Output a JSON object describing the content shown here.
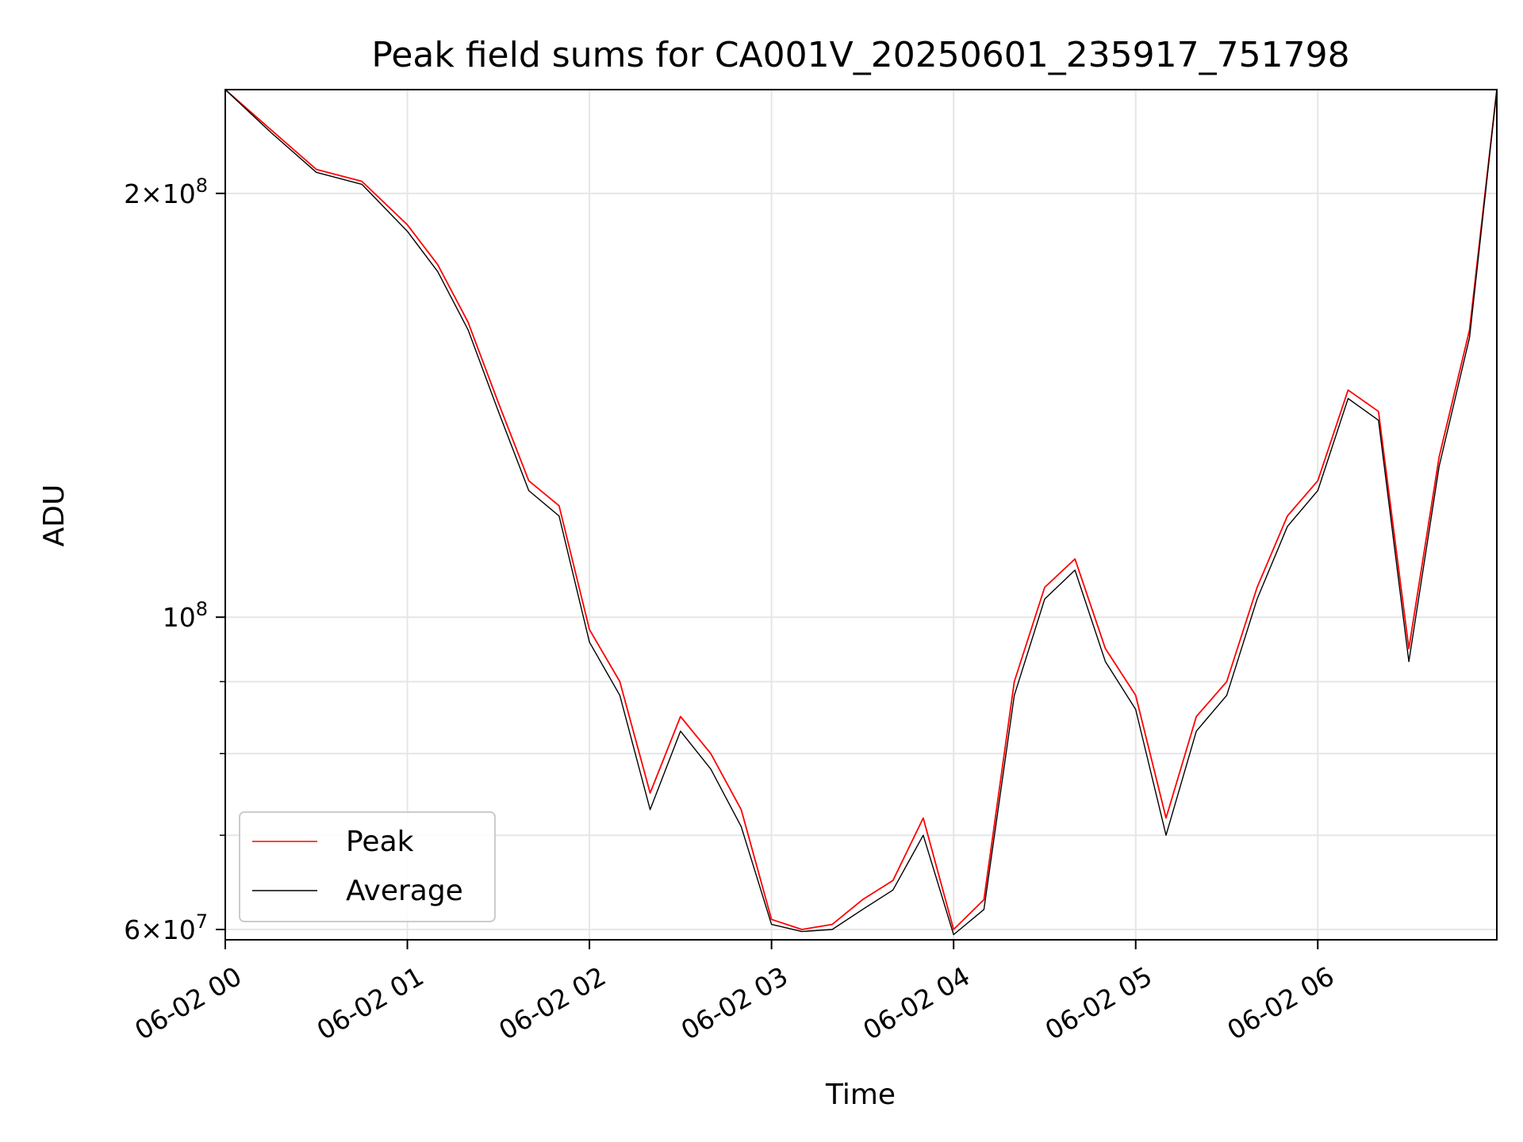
{
  "chart_data": {
    "type": "line",
    "title": "Peak field sums for CA001V_20250601_235917_751798",
    "xlabel": "Time",
    "ylabel": "ADU",
    "yscale": "log",
    "ylim": [
      59000000,
      237000000
    ],
    "xlim": [
      "2025-06-02 00:00",
      "2025-06-02 06:59"
    ],
    "grid": true,
    "legend_position": "lower-left",
    "x_ticks": [
      "06-02 00",
      "06-02 01",
      "06-02 02",
      "06-02 03",
      "06-02 04",
      "06-02 05",
      "06-02 06"
    ],
    "y_ticks": [
      {
        "value": 60000000,
        "mantissa": "6",
        "base": "10",
        "exp": "7"
      },
      {
        "value": 100000000,
        "mantissa": "",
        "base": "10",
        "exp": "8"
      },
      {
        "value": 200000000,
        "mantissa": "2",
        "base": "10",
        "exp": "8"
      }
    ],
    "y_minor_ticks": [
      70000000,
      80000000,
      90000000
    ],
    "series": [
      {
        "name": "Peak",
        "color": "#ff0000",
        "time": [
          "00:00",
          "00:15",
          "00:30",
          "00:45",
          "01:00",
          "01:10",
          "01:20",
          "01:30",
          "01:40",
          "01:50",
          "02:00",
          "02:10",
          "02:20",
          "02:30",
          "02:40",
          "02:50",
          "03:00",
          "03:10",
          "03:20",
          "03:30",
          "03:40",
          "03:50",
          "04:00",
          "04:10",
          "04:20",
          "04:30",
          "04:40",
          "04:50",
          "05:00",
          "05:10",
          "05:20",
          "05:30",
          "05:40",
          "05:50",
          "06:00",
          "06:10",
          "06:20",
          "06:30",
          "06:40",
          "06:50",
          "06:59"
        ],
        "values": [
          237000000,
          222000000,
          208000000,
          204000000,
          190000000,
          178000000,
          162000000,
          142000000,
          125000000,
          120000000,
          98000000,
          90000000,
          75000000,
          85000000,
          80000000,
          73000000,
          61000000,
          60000000,
          60500000,
          63000000,
          65000000,
          72000000,
          60000000,
          63000000,
          90000000,
          105000000,
          110000000,
          95000000,
          88000000,
          72000000,
          85000000,
          90000000,
          105000000,
          118000000,
          125000000,
          145000000,
          140000000,
          95000000,
          130000000,
          160000000,
          237000000
        ]
      },
      {
        "name": "Average",
        "color": "#000000",
        "time": [
          "00:00",
          "00:15",
          "00:30",
          "00:45",
          "01:00",
          "01:10",
          "01:20",
          "01:30",
          "01:40",
          "01:50",
          "02:00",
          "02:10",
          "02:20",
          "02:30",
          "02:40",
          "02:50",
          "03:00",
          "03:10",
          "03:20",
          "03:30",
          "03:40",
          "03:50",
          "04:00",
          "04:10",
          "04:20",
          "04:30",
          "04:40",
          "04:50",
          "05:00",
          "05:10",
          "05:20",
          "05:30",
          "05:40",
          "05:50",
          "06:00",
          "06:10",
          "06:20",
          "06:30",
          "06:40",
          "06:50",
          "06:59"
        ],
        "values": [
          237000000,
          221000000,
          207000000,
          203000000,
          188000000,
          176000000,
          160000000,
          140000000,
          123000000,
          118000000,
          96000000,
          88000000,
          73000000,
          83000000,
          78000000,
          71000000,
          60500000,
          59800000,
          60000000,
          62000000,
          64000000,
          70000000,
          59500000,
          62000000,
          88000000,
          103000000,
          108000000,
          93000000,
          86000000,
          70000000,
          83000000,
          88000000,
          103000000,
          116000000,
          123000000,
          143000000,
          138000000,
          93000000,
          128000000,
          158000000,
          237000000
        ]
      }
    ]
  }
}
